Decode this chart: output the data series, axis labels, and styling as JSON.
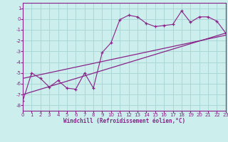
{
  "xlabel": "Windchill (Refroidissement éolien,°C)",
  "bg_color": "#cceeed",
  "grid_color": "#aad8d6",
  "line_color": "#882288",
  "xlim": [
    0,
    23
  ],
  "ylim": [
    -8.5,
    1.5
  ],
  "xticks": [
    0,
    1,
    2,
    3,
    4,
    5,
    6,
    7,
    8,
    9,
    10,
    11,
    12,
    13,
    14,
    15,
    16,
    17,
    18,
    19,
    20,
    21,
    22,
    23
  ],
  "yticks": [
    -8,
    -7,
    -6,
    -5,
    -4,
    -3,
    -2,
    -1,
    0,
    1
  ],
  "data_x": [
    0,
    1,
    2,
    3,
    4,
    5,
    6,
    7,
    8,
    9,
    10,
    11,
    12,
    13,
    14,
    15,
    16,
    17,
    18,
    19,
    20,
    21,
    22,
    23
  ],
  "data_y": [
    -7.6,
    -5.0,
    -5.5,
    -6.3,
    -5.7,
    -6.4,
    -6.5,
    -5.0,
    -6.4,
    -3.1,
    -2.2,
    -0.05,
    0.35,
    0.2,
    -0.4,
    -0.7,
    -0.6,
    -0.5,
    0.75,
    -0.3,
    0.2,
    0.2,
    -0.2,
    -1.3
  ],
  "trend1_x": [
    0,
    23
  ],
  "trend1_y": [
    -7.0,
    -1.3
  ],
  "trend2_x": [
    0,
    23
  ],
  "trend2_y": [
    -5.5,
    -1.5
  ]
}
